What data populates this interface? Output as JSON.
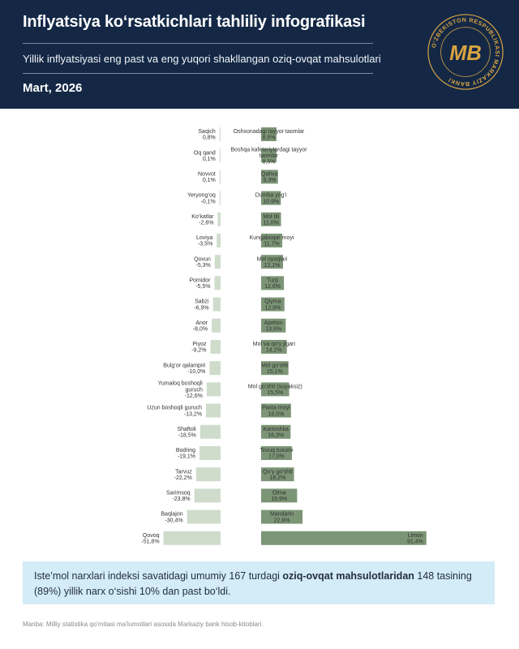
{
  "header": {
    "title": "Inflyatsiya ko‘rsatkichlari tahliliy infografikasi",
    "subtitle": "Yillik inflyatsiyasi eng past va eng yuqori shakllangan oziq-ovqat mahsulotlari",
    "date": "Mart, 2026"
  },
  "logo": {
    "ring_text": "O‘ZBEKISTON RESPUBLIKASI MARKAZIY BANKI",
    "monogram": "MB"
  },
  "colors": {
    "header_bg": "#142846",
    "gold": "#d9a441",
    "bar_high": "#7c9576",
    "bar_low": "#cfdccc",
    "note_bg": "#d4ebf8"
  },
  "chart_data": {
    "type": "bar",
    "orientation": "horizontal",
    "title": "Yillik inflyatsiyasi eng past va eng yuqori shakllangan oziq-ovqat mahsulotlari",
    "units": "%",
    "low": [
      {
        "label": "Saqich",
        "value": 0.8,
        "display": "0,8%"
      },
      {
        "label": "Oq qand",
        "value": 0.1,
        "display": "0,1%"
      },
      {
        "label": "Novvot",
        "value": 0.1,
        "display": "0,1%"
      },
      {
        "label": "Yeryong‘oq",
        "value": -0.1,
        "display": "-0,1%"
      },
      {
        "label": "Ko‘katlar",
        "value": -2.6,
        "display": "-2,6%"
      },
      {
        "label": "Loviya",
        "value": -3.5,
        "display": "-3,5%"
      },
      {
        "label": "Qovun",
        "value": -5.3,
        "display": "-5,3%"
      },
      {
        "label": "Pomidor",
        "value": -5.5,
        "display": "-5,5%"
      },
      {
        "label": "Sabzi",
        "value": -6.9,
        "display": "-6,9%"
      },
      {
        "label": "Anor",
        "value": -8.0,
        "display": "-8,0%"
      },
      {
        "label": "Piyoz",
        "value": -9.2,
        "display": "-9,2%"
      },
      {
        "label": "Bulg‘or qalampiri",
        "value": -10.0,
        "display": "-10,0%"
      },
      {
        "label": "Yumaloq boshoqli guruch",
        "value": -12.6,
        "display": "-12,6%"
      },
      {
        "label": "Uzun boshoqli guruch",
        "value": -13.2,
        "display": "-13,2%"
      },
      {
        "label": "Shaftoli",
        "value": -18.5,
        "display": "-18,5%"
      },
      {
        "label": "Bodring",
        "value": -19.1,
        "display": "-19,1%"
      },
      {
        "label": "Tarvuz",
        "value": -22.2,
        "display": "-22,2%"
      },
      {
        "label": "Sarimsoq",
        "value": -23.8,
        "display": "-23,8%"
      },
      {
        "label": "Baqlajon",
        "value": -30.4,
        "display": "-30,4%"
      },
      {
        "label": "Qovoq",
        "value": -51.8,
        "display": "-51,8%"
      }
    ],
    "high": [
      {
        "label": "Oshxonadagi tayyor taomlar",
        "value": 8.5,
        "display": "8,5%"
      },
      {
        "label": "Boshqa kafeteriylardagi tayyor taomlar",
        "value": 8.5,
        "display": "8,5%"
      },
      {
        "label": "Qahva",
        "value": 9.3,
        "display": "9,3%"
      },
      {
        "label": "Dumba yog‘i",
        "value": 10.9,
        "display": "10,9%"
      },
      {
        "label": "Mol tili",
        "value": 11.0,
        "display": "11,0%"
      },
      {
        "label": "Kungaboqar moyi",
        "value": 11.7,
        "display": "11,7%"
      },
      {
        "label": "Mol oyoqlari",
        "value": 12.1,
        "display": "12,1%"
      },
      {
        "label": "Turp",
        "value": 12.6,
        "display": "12,6%"
      },
      {
        "label": "Qiyma",
        "value": 12.9,
        "display": "12,9%"
      },
      {
        "label": "Apelsin",
        "value": 13.6,
        "display": "13,6%"
      },
      {
        "label": "Mol va qo‘y jigari",
        "value": 14.2,
        "display": "14,2%"
      },
      {
        "label": "Mol go‘shti",
        "value": 15.1,
        "display": "15,1%"
      },
      {
        "label": "Mol go‘shti (suyaksiz)",
        "value": 15.5,
        "display": "15,5%"
      },
      {
        "label": "Paxta moyi",
        "value": 16.5,
        "display": "16,5%"
      },
      {
        "label": "Kartoshka",
        "value": 16.3,
        "display": "16,3%"
      },
      {
        "label": "Tovuq tuxumi",
        "value": 17.0,
        "display": "17,0%"
      },
      {
        "label": "Qo‘y go‘shti",
        "value": 18.2,
        "display": "18,2%"
      },
      {
        "label": "Olma",
        "value": 19.9,
        "display": "19,9%"
      },
      {
        "label": "Mandarin",
        "value": 22.9,
        "display": "22,9%"
      },
      {
        "label": "Limon",
        "value": 91.4,
        "display": "91,4%"
      }
    ]
  },
  "note": {
    "part1": "Iste’mol narxlari indeksi savatidagi umumiy 167 turdagi ",
    "bold": "oziq-ovqat mahsulotlaridan",
    "part2": " 148 tasining (89%) yillik narx o‘sishi 10% dan past bo‘ldi."
  },
  "source": "Manba: Milliy statistika qo‘mitasi ma’lumotlari asosida Markaziy bank hisob-kitoblari."
}
